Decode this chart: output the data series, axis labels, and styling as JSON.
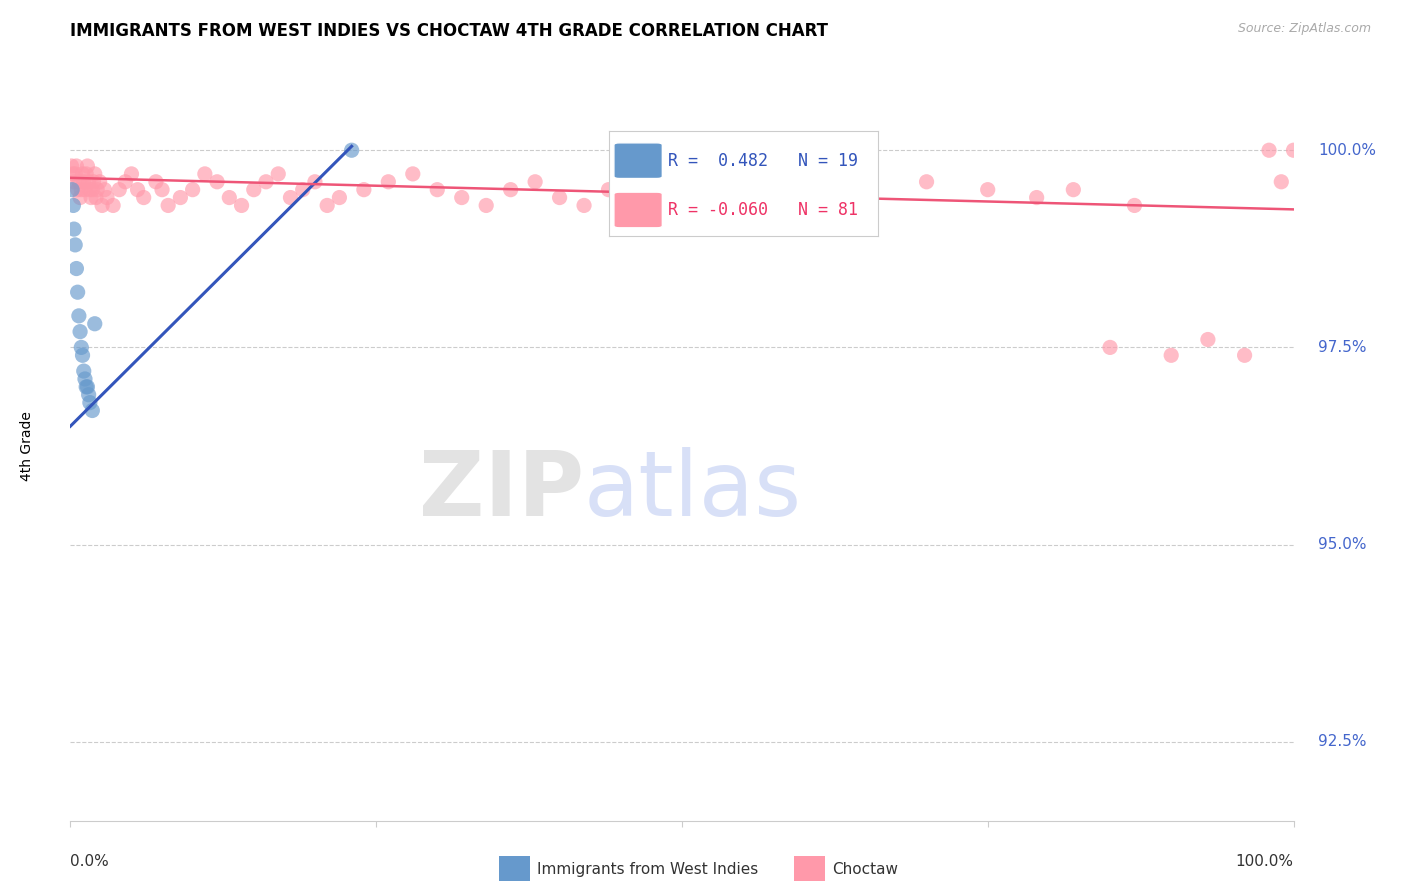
{
  "title": "IMMIGRANTS FROM WEST INDIES VS CHOCTAW 4TH GRADE CORRELATION CHART",
  "source": "Source: ZipAtlas.com",
  "xlabel_bottom_left": "0.0%",
  "xlabel_bottom_right": "100.0%",
  "ylabel": "4th Grade",
  "yaxis_labels": [
    "92.5%",
    "95.0%",
    "97.5%",
    "100.0%"
  ],
  "yaxis_values": [
    92.5,
    95.0,
    97.5,
    100.0
  ],
  "xmin": 0.0,
  "xmax": 100.0,
  "ymin": 91.5,
  "ymax": 101.0,
  "legend_blue_r": "0.482",
  "legend_blue_n": "19",
  "legend_pink_r": "-0.060",
  "legend_pink_n": "81",
  "blue_color": "#6699cc",
  "pink_color": "#ff99aa",
  "blue_line_color": "#3355bb",
  "pink_line_color": "#ee5577",
  "background_color": "#ffffff",
  "grid_color": "#cccccc",
  "blue_scatter_x": [
    0.15,
    0.25,
    0.3,
    0.4,
    0.5,
    0.6,
    0.7,
    0.8,
    0.9,
    1.0,
    1.1,
    1.2,
    1.3,
    1.4,
    1.5,
    1.6,
    1.8,
    2.0,
    23.0
  ],
  "blue_scatter_y": [
    99.5,
    99.3,
    99.0,
    98.8,
    98.5,
    98.2,
    97.9,
    97.7,
    97.5,
    97.4,
    97.2,
    97.1,
    97.0,
    97.0,
    96.9,
    96.8,
    96.7,
    97.8,
    100.0
  ],
  "pink_scatter_x": [
    0.1,
    0.2,
    0.3,
    0.4,
    0.5,
    0.6,
    0.7,
    0.8,
    0.9,
    1.0,
    1.1,
    1.2,
    1.3,
    1.4,
    1.5,
    1.6,
    1.7,
    1.8,
    1.9,
    2.0,
    2.1,
    2.2,
    2.4,
    2.6,
    2.8,
    3.0,
    3.5,
    4.0,
    4.5,
    5.0,
    5.5,
    6.0,
    7.0,
    7.5,
    8.0,
    9.0,
    10.0,
    11.0,
    12.0,
    13.0,
    14.0,
    15.0,
    16.0,
    17.0,
    18.0,
    19.0,
    20.0,
    21.0,
    22.0,
    24.0,
    26.0,
    28.0,
    30.0,
    32.0,
    34.0,
    36.0,
    38.0,
    40.0,
    42.0,
    44.0,
    46.0,
    48.0,
    50.0,
    52.0,
    54.0,
    55.0,
    57.0,
    60.0,
    65.0,
    70.0,
    75.0,
    79.0,
    82.0,
    85.0,
    87.0,
    90.0,
    93.0,
    96.0,
    98.0,
    100.0,
    99.0
  ],
  "pink_scatter_y": [
    99.8,
    99.7,
    99.6,
    99.7,
    99.8,
    99.5,
    99.6,
    99.4,
    99.5,
    99.7,
    99.6,
    99.5,
    99.7,
    99.8,
    99.6,
    99.5,
    99.4,
    99.5,
    99.6,
    99.7,
    99.4,
    99.5,
    99.6,
    99.3,
    99.5,
    99.4,
    99.3,
    99.5,
    99.6,
    99.7,
    99.5,
    99.4,
    99.6,
    99.5,
    99.3,
    99.4,
    99.5,
    99.7,
    99.6,
    99.4,
    99.3,
    99.5,
    99.6,
    99.7,
    99.4,
    99.5,
    99.6,
    99.3,
    99.4,
    99.5,
    99.6,
    99.7,
    99.5,
    99.4,
    99.3,
    99.5,
    99.6,
    99.4,
    99.3,
    99.5,
    99.6,
    99.7,
    99.5,
    99.4,
    99.3,
    99.5,
    99.6,
    99.4,
    99.5,
    99.6,
    99.5,
    99.4,
    99.5,
    97.5,
    99.3,
    97.4,
    97.6,
    97.4,
    100.0,
    100.0,
    99.6
  ],
  "blue_line_x0": 0.0,
  "blue_line_x1": 23.0,
  "blue_line_y0": 96.5,
  "blue_line_y1": 100.05,
  "pink_line_x0": 0.0,
  "pink_line_x1": 100.0,
  "pink_line_y0": 99.65,
  "pink_line_y1": 99.25
}
